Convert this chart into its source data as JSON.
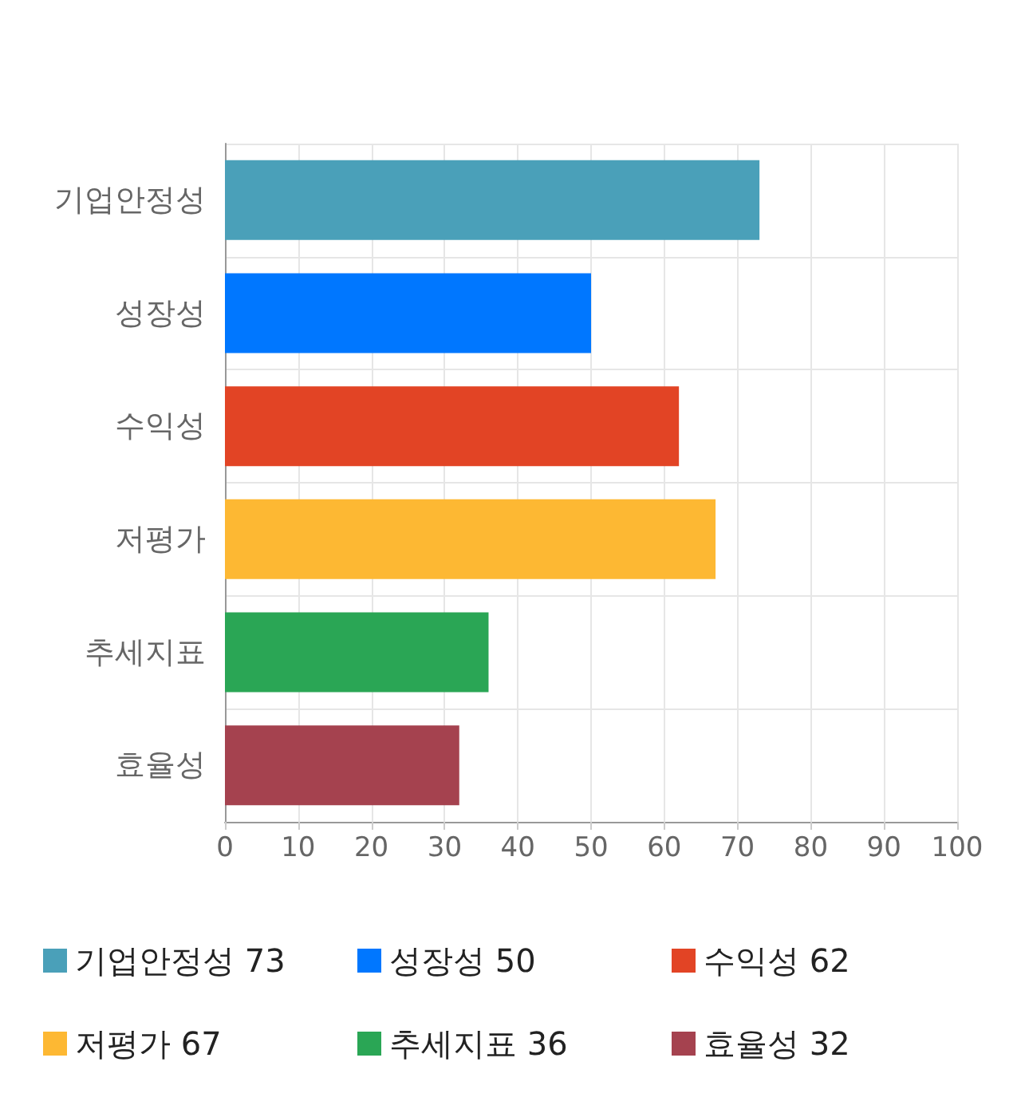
{
  "chart_data": {
    "type": "bar",
    "orientation": "horizontal",
    "stacked": true,
    "categories": [
      "기업안정성",
      "성장성",
      "수익성",
      "저평가",
      "추세지표",
      "효율성"
    ],
    "series": [
      {
        "name": "기업안정성 73",
        "color": "#4aa0b9",
        "values": [
          73,
          null,
          null,
          null,
          null,
          null
        ]
      },
      {
        "name": "성장성 50",
        "color": "#0077ff",
        "values": [
          null,
          50,
          null,
          null,
          null,
          null
        ]
      },
      {
        "name": "수익성 62",
        "color": "#e24425",
        "values": [
          null,
          null,
          62,
          null,
          null,
          null
        ]
      },
      {
        "name": "저평가 67",
        "color": "#fdb833",
        "values": [
          null,
          null,
          null,
          67,
          null,
          null
        ]
      },
      {
        "name": "추세지표 36",
        "color": "#2aa655",
        "values": [
          null,
          null,
          null,
          null,
          36,
          null
        ]
      },
      {
        "name": "효율성 32",
        "color": "#a5424f",
        "values": [
          null,
          null,
          null,
          null,
          null,
          32
        ]
      }
    ],
    "xlim": [
      0,
      100
    ],
    "xticks": [
      0,
      10,
      20,
      30,
      40,
      50,
      60,
      70,
      80,
      90,
      100
    ],
    "grid": true,
    "legend": "bottom"
  }
}
